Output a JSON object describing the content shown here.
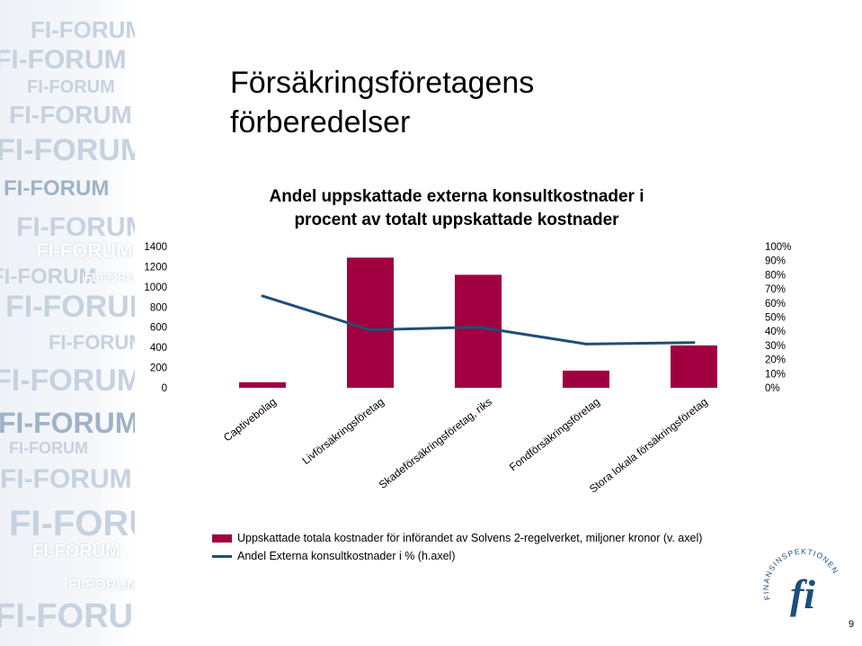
{
  "title_lines": [
    "Försäkringsföretagens",
    "förberedelser"
  ],
  "page_number": "9",
  "watermark_text": "FI-FORUM",
  "logo_text": "FINANSINSPEKTIONEN",
  "colors": {
    "bar": "#a00040",
    "line": "#1f4e79",
    "watermark": "#c7d2df"
  },
  "chart_data": {
    "type": "bar+line",
    "title_lines": [
      "Andel uppskattade externa konsultkostnader i",
      "procent av totalt uppskattade kostnader"
    ],
    "categories": [
      "Captivebolag",
      "Livförsäkringsföretag",
      "Skadeförsäkringsföretag, riks",
      "Fondförsäkringsföretag",
      "Stora lokala försäkringsföretag"
    ],
    "series": [
      {
        "name": "Uppskattade totala kostnader för införandet av Solvens 2-regelverket, miljoner kronor  (v. axel)",
        "type": "bar",
        "axis": "left",
        "values": [
          55,
          1290,
          1120,
          170,
          420
        ]
      },
      {
        "name": "Andel Externa konsultkostnader i % (h.axel)",
        "type": "line",
        "axis": "right",
        "values": [
          0.65,
          0.41,
          0.43,
          0.31,
          0.32
        ]
      }
    ],
    "y_left": {
      "min": 0,
      "max": 1400,
      "ticks": [
        "0",
        "200",
        "400",
        "600",
        "800",
        "1000",
        "1200",
        "1400"
      ]
    },
    "y_right": {
      "min": 0,
      "max": 1,
      "ticks": [
        "0%",
        "10%",
        "20%",
        "30%",
        "40%",
        "50%",
        "60%",
        "70%",
        "80%",
        "90%",
        "100%"
      ]
    },
    "grid": false,
    "legend_position": "bottom"
  }
}
